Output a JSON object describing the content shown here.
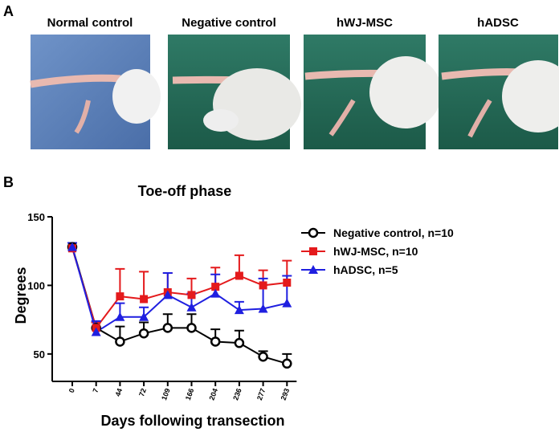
{
  "panel_a": {
    "letter": "A",
    "labels": [
      "Normal control",
      "Negative control",
      "hWJ-MSC",
      "hADSC"
    ]
  },
  "panel_b": {
    "letter": "B"
  },
  "chart_data": {
    "type": "line",
    "title": "Toe-off phase",
    "x_label": "Days following transection",
    "y_label": "Degrees",
    "categories": [
      "0",
      "7",
      "44",
      "72",
      "109",
      "166",
      "204",
      "236",
      "277",
      "293"
    ],
    "ylim": [
      30,
      150
    ],
    "yticks": [
      50,
      100,
      150
    ],
    "series": [
      {
        "name": "Negative control, n=10",
        "color": "#000000",
        "marker": "circle-open",
        "values": [
          128,
          69,
          59,
          65,
          69,
          69,
          59,
          58,
          48,
          43
        ],
        "errors": [
          3,
          4,
          11,
          8,
          10,
          10,
          9,
          9,
          4,
          7
        ]
      },
      {
        "name": "hWJ-MSC, n=10",
        "color": "#e41a1c",
        "marker": "square",
        "values": [
          127,
          69,
          92,
          90,
          95,
          93,
          99,
          107,
          100,
          102
        ],
        "errors": [
          4,
          4,
          20,
          20,
          14,
          12,
          14,
          15,
          11,
          16
        ]
      },
      {
        "name": "hADSC, n=5",
        "color": "#1f1fe0",
        "marker": "triangle",
        "values": [
          128,
          66,
          77,
          77,
          93,
          84,
          94,
          82,
          83,
          87
        ],
        "errors": [
          3,
          8,
          10,
          7,
          16,
          10,
          14,
          6,
          22,
          20
        ]
      }
    ]
  }
}
